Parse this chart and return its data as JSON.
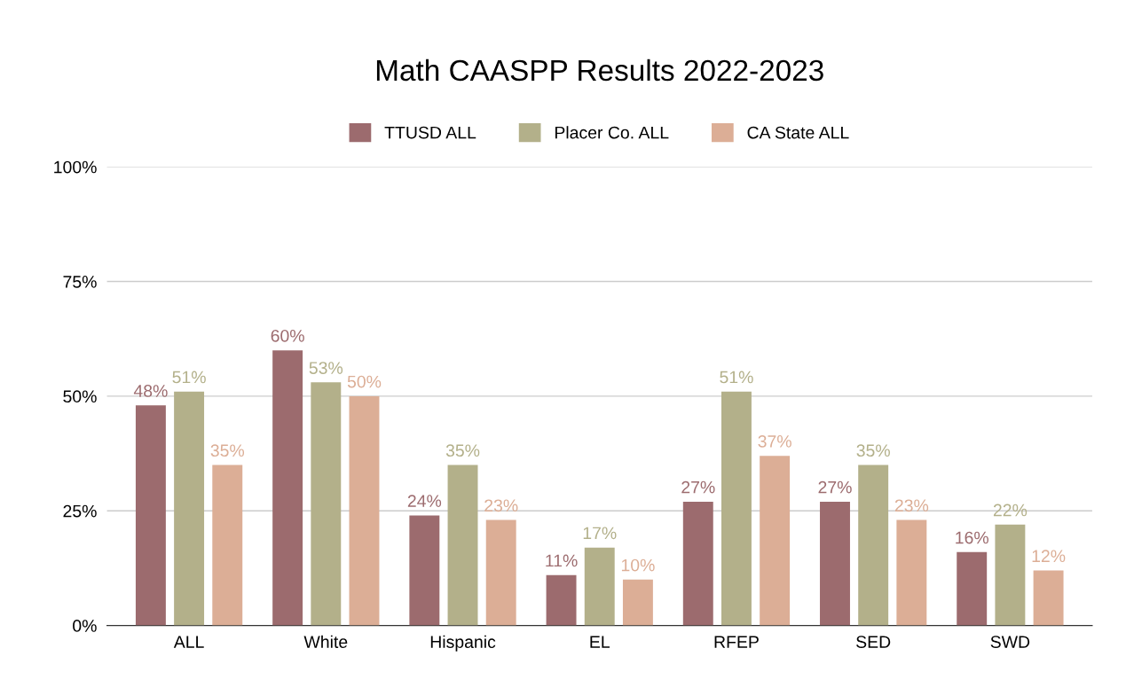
{
  "chart_data": {
    "type": "bar",
    "title": "Math CAASPP Results 2022-2023",
    "categories": [
      "ALL",
      "White",
      "Hispanic",
      "EL",
      "RFEP",
      "SED",
      "SWD"
    ],
    "series": [
      {
        "name": "TTUSD ALL",
        "color": "#9c6b6e",
        "values": [
          48,
          60,
          24,
          11,
          27,
          27,
          16
        ],
        "value_labels": [
          "48%",
          "60%",
          "24%",
          "11%",
          "27%",
          "27%",
          "16%"
        ]
      },
      {
        "name": "Placer Co. ALL",
        "color": "#b3b08a",
        "values": [
          51,
          53,
          35,
          17,
          51,
          35,
          22
        ],
        "value_labels": [
          "51%",
          "53%",
          "35%",
          "17%",
          "51%",
          "35%",
          "22%"
        ]
      },
      {
        "name": "CA State ALL",
        "color": "#dcae96",
        "values": [
          35,
          50,
          23,
          10,
          37,
          23,
          12
        ],
        "value_labels": [
          "35%",
          "50%",
          "23%",
          "10%",
          "37%",
          "23%",
          "12%"
        ]
      }
    ],
    "ylim": [
      0,
      100
    ],
    "yticks": [
      {
        "value": 0,
        "label": "0%"
      },
      {
        "value": 25,
        "label": "25%"
      },
      {
        "value": 50,
        "label": "50%"
      },
      {
        "value": 75,
        "label": "75%"
      },
      {
        "value": 100,
        "label": "100%"
      }
    ],
    "grid": "y",
    "legend": "top"
  }
}
